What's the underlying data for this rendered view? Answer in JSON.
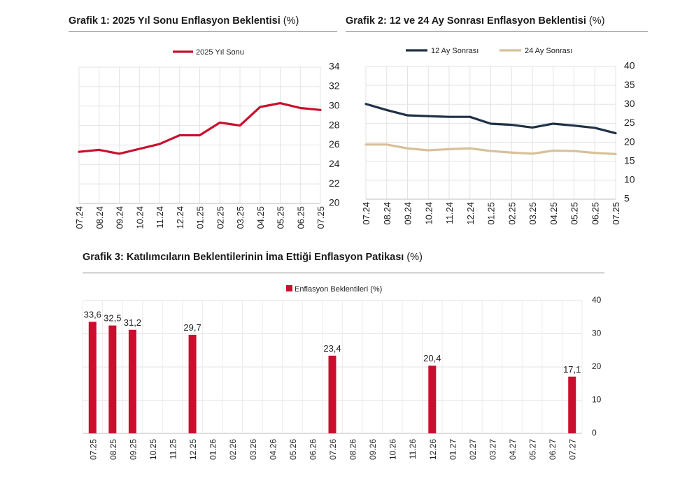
{
  "chart_data": [
    {
      "type": "line",
      "title": "Grafik 1: 2025 Yıl Sonu Enflasyon Beklentisi",
      "unit": "(%)",
      "categories": [
        "07.24",
        "08.24",
        "09.24",
        "10.24",
        "11.24",
        "12.24",
        "01.25",
        "02.25",
        "03.25",
        "04.25",
        "05.25",
        "06.25",
        "07.25"
      ],
      "series": [
        {
          "name": "2025 Yıl Sonu",
          "color": "#c8102e",
          "axis": "right",
          "values": [
            25.3,
            25.5,
            25.1,
            25.6,
            26.1,
            27.0,
            27.0,
            28.3,
            28.0,
            29.9,
            30.3,
            29.8,
            29.6
          ]
        }
      ],
      "ylim": [
        20,
        34
      ],
      "yticks": [
        20,
        22,
        24,
        26,
        28,
        30,
        32,
        34
      ],
      "legend": "top",
      "grid": true
    },
    {
      "type": "line",
      "title": "Grafik 2: 12 ve 24 Ay Sonrası Enflasyon Beklentisi",
      "unit": "(%)",
      "categories": [
        "07.24",
        "08.24",
        "09.24",
        "10.24",
        "11.24",
        "12.24",
        "01.25",
        "02.25",
        "03.25",
        "04.25",
        "05.25",
        "06.25",
        "07.25"
      ],
      "series": [
        {
          "name": "12 Ay Sonrası",
          "color": "#1f3146",
          "values": [
            30.1,
            28.5,
            27.1,
            26.9,
            26.7,
            26.7,
            24.9,
            24.6,
            23.9,
            24.9,
            24.4,
            23.8,
            22.4
          ]
        },
        {
          "name": "24 Ay Sonrası",
          "color": "#d8c09a",
          "values": [
            19.4,
            19.4,
            18.4,
            17.9,
            18.2,
            18.4,
            17.7,
            17.3,
            17.0,
            17.8,
            17.7,
            17.2,
            16.9
          ]
        }
      ],
      "ylim": [
        5,
        40
      ],
      "yticks": [
        5,
        10,
        15,
        20,
        25,
        30,
        35,
        40
      ],
      "legend": "top",
      "grid": true
    },
    {
      "type": "bar",
      "title": "Grafik 3: Katılımcıların Beklentilerinin İma Ettiği Enflasyon Patikası",
      "unit": "(%)",
      "categories": [
        "07.25",
        "08.25",
        "09.25",
        "10.25",
        "11.25",
        "12.25",
        "01.26",
        "02.26",
        "03.26",
        "04.26",
        "05.26",
        "06.26",
        "07.26",
        "08.26",
        "09.26",
        "10.26",
        "11.26",
        "12.26",
        "01.27",
        "02.27",
        "03.27",
        "04.27",
        "05.27",
        "06.27",
        "07.27"
      ],
      "series": [
        {
          "name": "Enflasyon Beklentileri (%)",
          "color": "#c8102e",
          "values": [
            33.6,
            32.5,
            31.2,
            null,
            null,
            29.7,
            null,
            null,
            null,
            null,
            null,
            null,
            23.4,
            null,
            null,
            null,
            null,
            20.4,
            null,
            null,
            null,
            null,
            null,
            null,
            17.1
          ],
          "labels": [
            "33,6",
            "32,5",
            "31,2",
            "",
            "",
            "29,7",
            "",
            "",
            "",
            "",
            "",
            "",
            "23,4",
            "",
            "",
            "",
            "",
            "20,4",
            "",
            "",
            "",
            "",
            "",
            "",
            "17,1"
          ]
        }
      ],
      "ylim": [
        0,
        40
      ],
      "yticks": [
        0,
        10,
        20,
        30,
        40
      ],
      "legend": "top",
      "grid": true
    }
  ]
}
